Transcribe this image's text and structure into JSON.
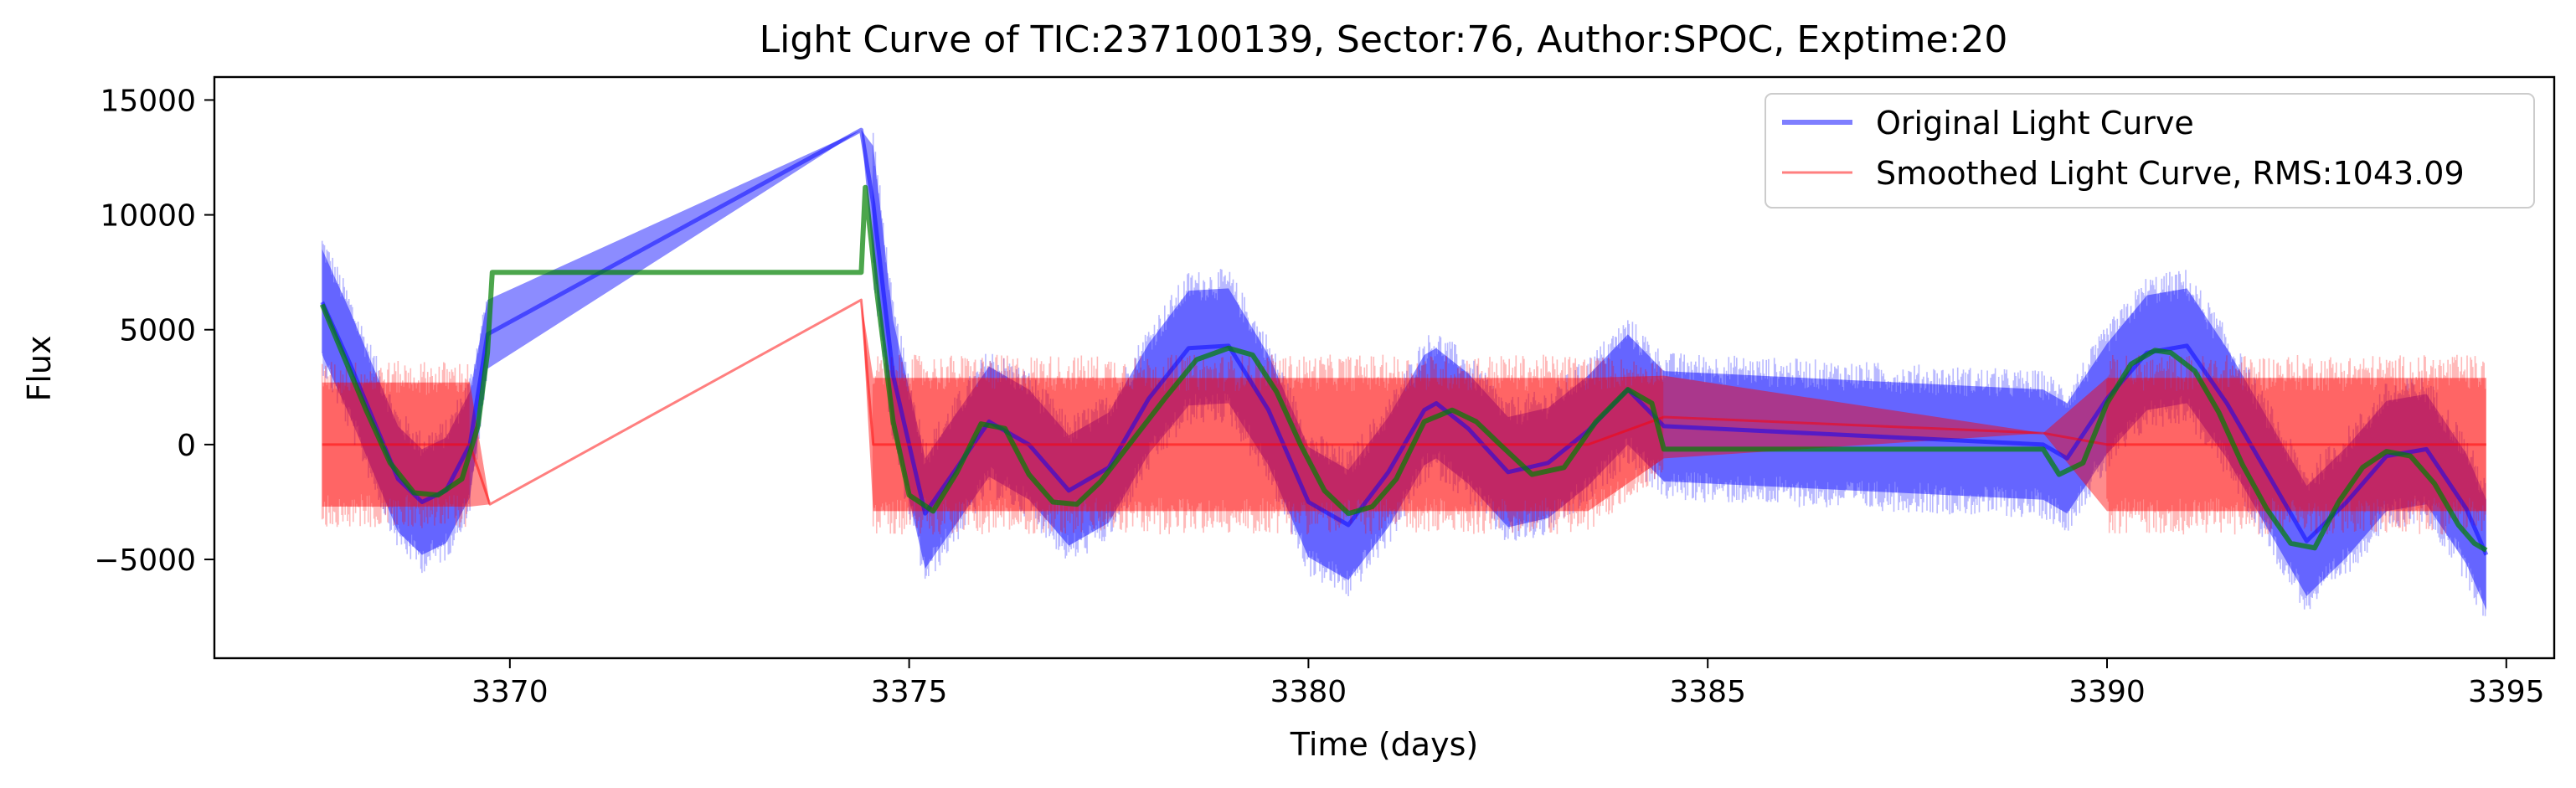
{
  "chart_data": {
    "type": "line",
    "title": "Light Curve of TIC:237100139, Sector:76, Author:SPOC, Exptime:20",
    "xlabel": "Time (days)",
    "ylabel": "Flux",
    "xlim": [
      3366.3,
      3395.6
    ],
    "ylim": [
      -9300,
      16000
    ],
    "xticks": [
      3370,
      3375,
      3380,
      3385,
      3390,
      3395
    ],
    "xtick_labels": [
      "3370",
      "3375",
      "3380",
      "3385",
      "3390",
      "3395"
    ],
    "yticks": [
      -5000,
      0,
      5000,
      10000,
      15000
    ],
    "ytick_labels": [
      "−5000",
      "0",
      "5000",
      "10000",
      "15000"
    ],
    "grid": false,
    "legend": "top-right",
    "series": [
      {
        "name": "Original Light Curve",
        "color": "#0000ff",
        "opacity": 0.5,
        "x": [
          3367.65,
          3368.0,
          3368.3,
          3368.6,
          3368.9,
          3369.2,
          3369.5,
          3369.72,
          3374.4,
          3374.55,
          3374.8,
          3375.2,
          3375.6,
          3376.0,
          3376.5,
          3377.0,
          3377.5,
          3378.0,
          3378.5,
          3379.0,
          3379.5,
          3380.0,
          3380.5,
          3381.0,
          3381.45,
          3381.6,
          3382.0,
          3382.5,
          3383.0,
          3383.5,
          3384.0,
          3384.45,
          3389.2,
          3389.5,
          3390.0,
          3390.5,
          3391.0,
          3391.5,
          3392.0,
          3392.5,
          3393.0,
          3393.5,
          3394.0,
          3394.5,
          3394.75
        ],
        "values": [
          6200,
          3500,
          1000,
          -1500,
          -2500,
          -2000,
          0,
          4800,
          13700,
          10500,
          3000,
          -3000,
          -1000,
          1000,
          0,
          -2000,
          -1000,
          2000,
          4200,
          4300,
          1500,
          -2500,
          -3500,
          -1200,
          1500,
          1800,
          700,
          -1200,
          -800,
          600,
          2400,
          800,
          0,
          -600,
          2000,
          4000,
          4300,
          1800,
          -1200,
          -4200,
          -2500,
          -500,
          -200,
          -2800,
          -4800
        ],
        "envelope": [
          2300,
          2300,
          2300,
          2300,
          2300,
          2300,
          2300,
          1500,
          0,
          2500,
          2400,
          2400,
          2400,
          2400,
          2400,
          2400,
          2400,
          2400,
          2500,
          2500,
          2400,
          2400,
          2400,
          2400,
          2400,
          2400,
          2400,
          2400,
          2400,
          2400,
          2400,
          2400,
          2400,
          2400,
          2400,
          2500,
          2500,
          2400,
          2400,
          2400,
          2400,
          2400,
          2400,
          2400,
          2400
        ]
      },
      {
        "name": "Smoothed Light Curve, RMS:1043.09",
        "color": "#ff0000",
        "opacity": 0.5,
        "x": [
          3367.65,
          3368.5,
          3369.5,
          3369.75,
          3374.4,
          3374.55,
          3375.5,
          3376.5,
          3377.5,
          3378.5,
          3379.5,
          3380.5,
          3381.45,
          3381.6,
          3382.5,
          3383.5,
          3384.45,
          3389.2,
          3390.0,
          3391.0,
          3392.0,
          3393.0,
          3394.0,
          3394.75
        ],
        "values": [
          0,
          0,
          0,
          -2600,
          6300,
          0,
          0,
          0,
          0,
          0,
          0,
          0,
          0,
          0,
          0,
          0,
          1200,
          500,
          0,
          0,
          0,
          0,
          0,
          0
        ],
        "envelope": [
          2700,
          2700,
          2700,
          0,
          0,
          2900,
          2900,
          2900,
          2900,
          2900,
          2900,
          2900,
          2900,
          2900,
          2900,
          2900,
          1800,
          0,
          2900,
          2900,
          2900,
          2900,
          2900,
          2900
        ]
      },
      {
        "name": "",
        "color": "#008000",
        "opacity": 0.7,
        "x": [
          3367.65,
          3367.9,
          3368.2,
          3368.5,
          3368.8,
          3369.1,
          3369.4,
          3369.6,
          3369.72,
          3369.78,
          3374.4,
          3374.45,
          3374.6,
          3374.8,
          3375.0,
          3375.3,
          3375.6,
          3375.9,
          3376.2,
          3376.5,
          3376.8,
          3377.1,
          3377.4,
          3377.8,
          3378.2,
          3378.6,
          3379.0,
          3379.3,
          3379.6,
          3379.9,
          3380.2,
          3380.5,
          3380.8,
          3381.1,
          3381.45,
          3381.8,
          3382.1,
          3382.4,
          3382.8,
          3383.2,
          3383.6,
          3384.0,
          3384.3,
          3384.45,
          3389.2,
          3389.4,
          3389.7,
          3390.0,
          3390.3,
          3390.6,
          3390.8,
          3391.1,
          3391.4,
          3391.7,
          3392.0,
          3392.3,
          3392.6,
          3392.9,
          3393.2,
          3393.5,
          3393.8,
          3394.1,
          3394.4,
          3394.6,
          3394.75
        ],
        "values": [
          6100,
          4000,
          1500,
          -800,
          -2100,
          -2200,
          -1500,
          800,
          4000,
          7500,
          7500,
          11200,
          6500,
          1000,
          -2200,
          -2900,
          -1200,
          900,
          700,
          -1300,
          -2500,
          -2600,
          -1600,
          200,
          2000,
          3700,
          4200,
          3900,
          2300,
          0,
          -2000,
          -3000,
          -2700,
          -1500,
          1000,
          1500,
          1000,
          0,
          -1300,
          -1000,
          1000,
          2400,
          1800,
          -200,
          -200,
          -1300,
          -800,
          1800,
          3500,
          4100,
          4000,
          3200,
          1400,
          -900,
          -2800,
          -4300,
          -4500,
          -2500,
          -1000,
          -300,
          -500,
          -1700,
          -3500,
          -4300,
          -4600
        ],
        "envelope": []
      }
    ]
  }
}
